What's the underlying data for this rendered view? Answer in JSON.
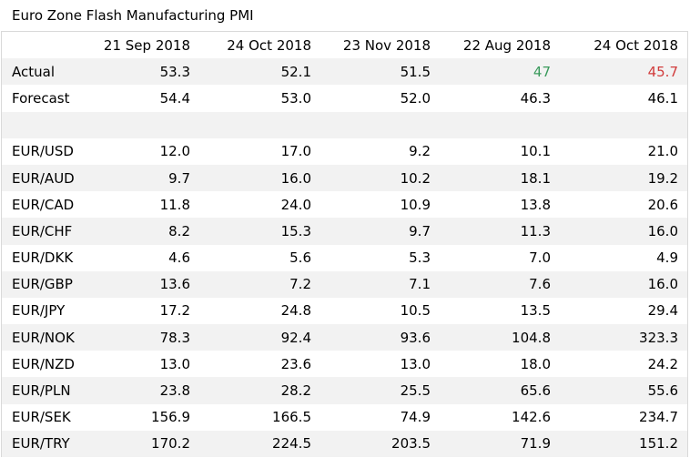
{
  "title": "Euro Zone Flash Manufacturing PMI",
  "columns": [
    "21 Sep 2018",
    "24 Oct 2018",
    "23 Nov 2018",
    "22 Aug 2018",
    "24 Oct 2018"
  ],
  "colors": {
    "positive": "#3a9a5c",
    "negative": "#d13b3b",
    "band": "#f2f2f2",
    "border": "#d9d9d9"
  },
  "rows": [
    {
      "label": "Actual",
      "values": [
        "53.3",
        "52.1",
        "51.5",
        "47",
        "45.7"
      ]
    },
    {
      "label": "Forecast",
      "values": [
        "54.4",
        "53.0",
        "52.0",
        "46.3",
        "46.1"
      ]
    },
    {
      "label": "",
      "values": [
        "",
        "",
        "",
        "",
        ""
      ]
    },
    {
      "label": "EUR/USD",
      "values": [
        "12.0",
        "17.0",
        "9.2",
        "10.1",
        "21.0"
      ]
    },
    {
      "label": "EUR/AUD",
      "values": [
        "9.7",
        "16.0",
        "10.2",
        "18.1",
        "19.2"
      ]
    },
    {
      "label": "EUR/CAD",
      "values": [
        "11.8",
        "24.0",
        "10.9",
        "13.8",
        "20.6"
      ]
    },
    {
      "label": "EUR/CHF",
      "values": [
        "8.2",
        "15.3",
        "9.7",
        "11.3",
        "16.0"
      ]
    },
    {
      "label": "EUR/DKK",
      "values": [
        "4.6",
        "5.6",
        "5.3",
        "7.0",
        "4.9"
      ]
    },
    {
      "label": "EUR/GBP",
      "values": [
        "13.6",
        "7.2",
        "7.1",
        "7.6",
        "16.0"
      ]
    },
    {
      "label": "EUR/JPY",
      "values": [
        "17.2",
        "24.8",
        "10.5",
        "13.5",
        "29.4"
      ]
    },
    {
      "label": "EUR/NOK",
      "values": [
        "78.3",
        "92.4",
        "93.6",
        "104.8",
        "323.3"
      ]
    },
    {
      "label": "EUR/NZD",
      "values": [
        "13.0",
        "23.6",
        "13.0",
        "18.0",
        "24.2"
      ]
    },
    {
      "label": "EUR/PLN",
      "values": [
        "23.8",
        "28.2",
        "25.5",
        "65.6",
        "55.6"
      ]
    },
    {
      "label": "EUR/SEK",
      "values": [
        "156.9",
        "166.5",
        "74.9",
        "142.6",
        "234.7"
      ]
    },
    {
      "label": "EUR/TRY",
      "values": [
        "170.2",
        "224.5",
        "203.5",
        "71.9",
        "151.2"
      ]
    }
  ]
}
